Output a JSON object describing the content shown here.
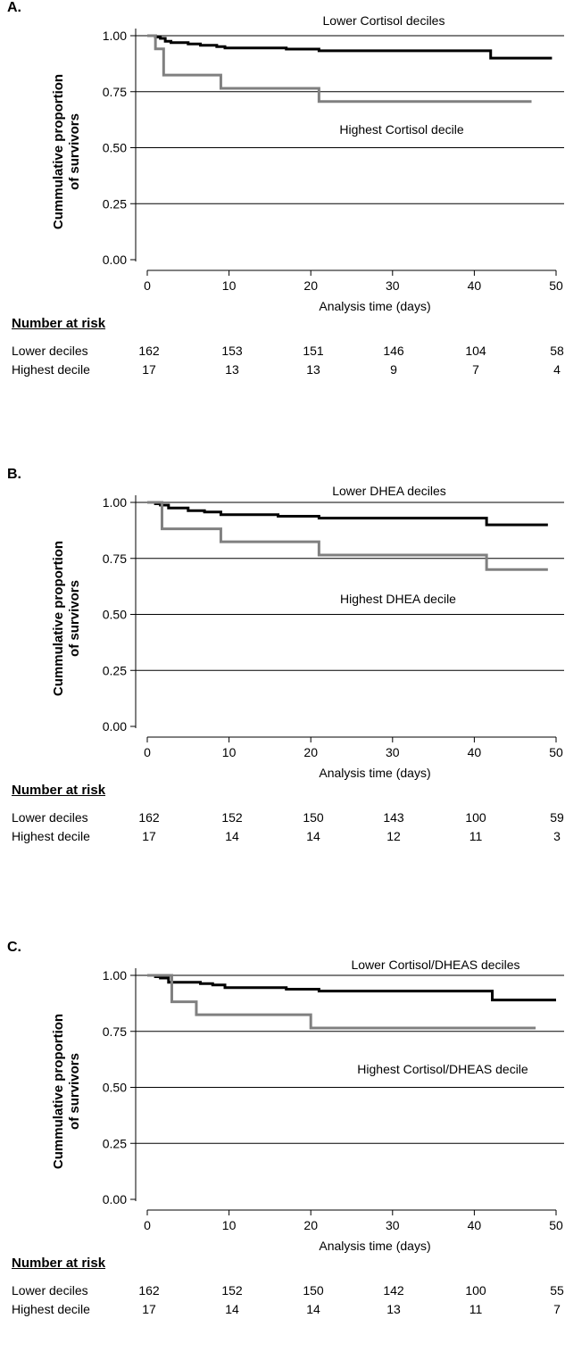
{
  "chart_data": [
    {
      "type": "line",
      "subtype": "kaplan-meier step",
      "panel_label": "A.",
      "ylabel_line1": "Cummulative proportion",
      "ylabel_line2": "of survivors",
      "xlabel": "Analysis time (days)",
      "xlim": [
        0,
        50
      ],
      "ylim": [
        0,
        1
      ],
      "x_ticks": [
        "0",
        "10",
        "20",
        "30",
        "40",
        "50"
      ],
      "y_ticks": [
        "0.00",
        "0.25",
        "0.50",
        "0.75",
        "1.00"
      ],
      "grid": "horizontal lines at y ticks",
      "series": [
        {
          "name": "Lower Cortisol deciles",
          "color": "#000000",
          "points": [
            [
              0,
              1.0
            ],
            [
              1,
              0.994
            ],
            [
              1.6,
              0.988
            ],
            [
              2.2,
              0.975
            ],
            [
              2.9,
              0.969
            ],
            [
              5,
              0.963
            ],
            [
              6.5,
              0.957
            ],
            [
              8.5,
              0.951
            ],
            [
              9.5,
              0.945
            ],
            [
              17,
              0.94
            ],
            [
              21,
              0.933
            ],
            [
              42,
              0.9
            ],
            [
              49.5,
              0.9
            ]
          ]
        },
        {
          "name": "Highest Cortisol decile",
          "color": "#808080",
          "points": [
            [
              0,
              1.0
            ],
            [
              1,
              0.941
            ],
            [
              2,
              0.824
            ],
            [
              9,
              0.765
            ],
            [
              21,
              0.706
            ],
            [
              47,
              0.706
            ]
          ]
        }
      ],
      "number_at_risk": {
        "title": "Number at risk",
        "rows": [
          {
            "label": "Lower deciles",
            "values": [
              "162",
              "153",
              "151",
              "146",
              "104",
              "58"
            ]
          },
          {
            "label": "Highest decile",
            "values": [
              "17",
              "13",
              "13",
              "9",
              "7",
              "4"
            ]
          }
        ]
      }
    },
    {
      "type": "line",
      "subtype": "kaplan-meier step",
      "panel_label": "B.",
      "ylabel_line1": "Cummulative proportion",
      "ylabel_line2": "of survivors",
      "xlabel": "Analysis time (days)",
      "xlim": [
        0,
        50
      ],
      "ylim": [
        0,
        1
      ],
      "x_ticks": [
        "0",
        "10",
        "20",
        "30",
        "40",
        "50"
      ],
      "y_ticks": [
        "0.00",
        "0.25",
        "0.50",
        "0.75",
        "1.00"
      ],
      "grid": "horizontal lines at y ticks",
      "series": [
        {
          "name": "Lower DHEA deciles",
          "color": "#000000",
          "points": [
            [
              0,
              1.0
            ],
            [
              1,
              0.994
            ],
            [
              1.6,
              0.988
            ],
            [
              2.6,
              0.975
            ],
            [
              5,
              0.963
            ],
            [
              7,
              0.957
            ],
            [
              9,
              0.945
            ],
            [
              16,
              0.938
            ],
            [
              21,
              0.93
            ],
            [
              41.5,
              0.9
            ],
            [
              49,
              0.9
            ]
          ]
        },
        {
          "name": "Highest DHEA decile",
          "color": "#808080",
          "points": [
            [
              0,
              1.0
            ],
            [
              1.8,
              0.882
            ],
            [
              9,
              0.824
            ],
            [
              21,
              0.765
            ],
            [
              41.5,
              0.7
            ],
            [
              49,
              0.7
            ]
          ]
        }
      ],
      "number_at_risk": {
        "title": "Number at risk",
        "rows": [
          {
            "label": "Lower deciles",
            "values": [
              "162",
              "152",
              "150",
              "143",
              "100",
              "59"
            ]
          },
          {
            "label": "Highest decile",
            "values": [
              "17",
              "14",
              "14",
              "12",
              "11",
              "3"
            ]
          }
        ]
      }
    },
    {
      "type": "line",
      "subtype": "kaplan-meier step",
      "panel_label": "C.",
      "ylabel_line1": "Cummulative proportion",
      "ylabel_line2": "of survivors",
      "xlabel": "Analysis time (days)",
      "xlim": [
        0,
        50
      ],
      "ylim": [
        0,
        1
      ],
      "x_ticks": [
        "0",
        "10",
        "20",
        "30",
        "40",
        "50"
      ],
      "y_ticks": [
        "0.00",
        "0.25",
        "0.50",
        "0.75",
        "1.00"
      ],
      "grid": "horizontal lines at y ticks",
      "series": [
        {
          "name": "Lower Cortisol/DHEAS deciles",
          "color": "#000000",
          "points": [
            [
              0,
              1.0
            ],
            [
              1,
              0.994
            ],
            [
              1.6,
              0.988
            ],
            [
              2.6,
              0.969
            ],
            [
              6.5,
              0.963
            ],
            [
              8,
              0.957
            ],
            [
              9.5,
              0.945
            ],
            [
              17,
              0.938
            ],
            [
              21,
              0.93
            ],
            [
              42.2,
              0.89
            ],
            [
              50,
              0.89
            ]
          ]
        },
        {
          "name": "Highest Cortisol/DHEAS decile",
          "color": "#808080",
          "points": [
            [
              0,
              1.0
            ],
            [
              3,
              0.882
            ],
            [
              6,
              0.824
            ],
            [
              20,
              0.765
            ],
            [
              47.5,
              0.765
            ]
          ]
        }
      ],
      "number_at_risk": {
        "title": "Number at risk",
        "rows": [
          {
            "label": "Lower deciles",
            "values": [
              "162",
              "152",
              "150",
              "142",
              "100",
              "55"
            ]
          },
          {
            "label": "Highest decile",
            "values": [
              "17",
              "14",
              "14",
              "13",
              "11",
              "7"
            ]
          }
        ]
      }
    }
  ]
}
